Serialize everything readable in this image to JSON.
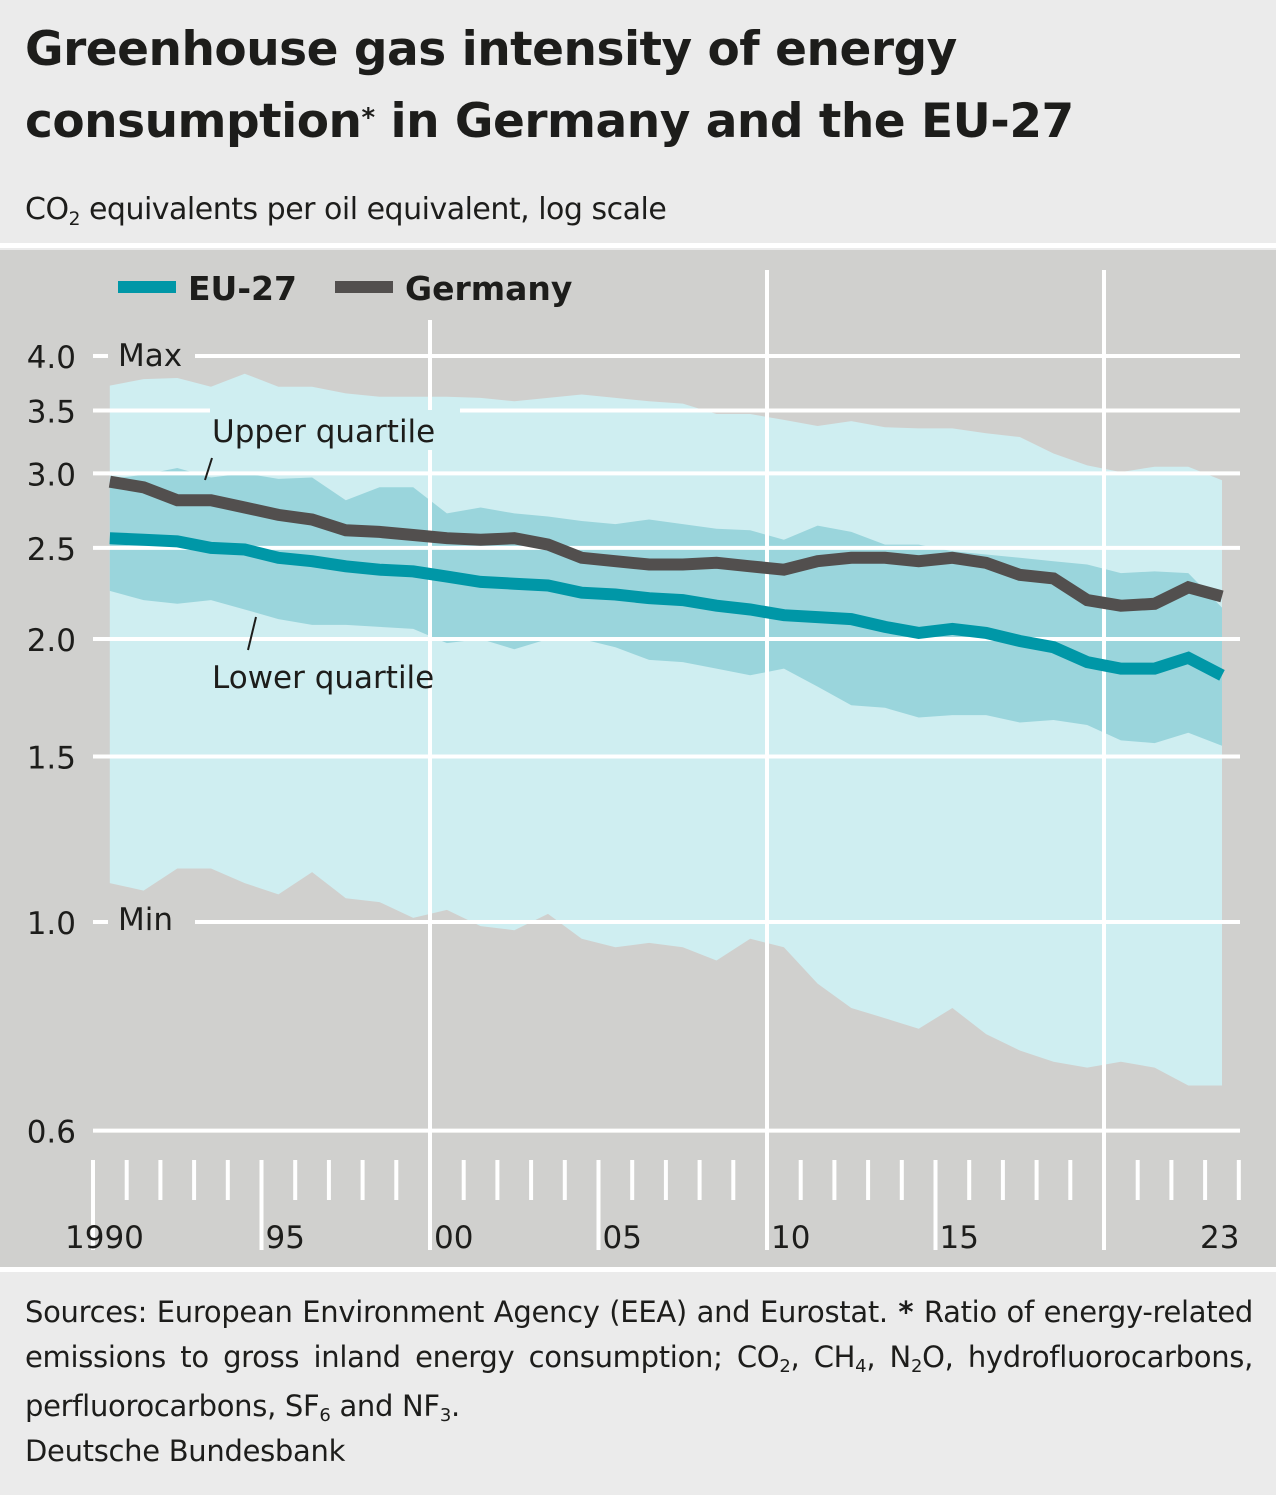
{
  "header": {
    "title_line1": "Greenhouse gas intensity of energy",
    "title_line2_a": "consumption",
    "title_star": "*",
    "title_line2_b": " in Germany and the EU-27",
    "subtitle_co": "CO",
    "subtitle_sub": "2",
    "subtitle_rest": " equivalents per oil equivalent, log scale"
  },
  "footer": {
    "sources": "Sources: European Environment Agency (EEA) and Eurostat.",
    "star": " * ",
    "note_a": "Ratio of energy-related emissions to gross inland energy consumption; CO",
    "note_sub1": "2",
    "note_b": ", CH",
    "note_sub2": "4",
    "note_c": ", N",
    "note_sub3": "2",
    "note_d": "O, hydrofluorocarbons, perfluorocarbons, SF",
    "note_sub4": "6",
    "note_e": " and NF",
    "note_sub5": "3",
    "note_f": ".",
    "credit": "Deutsche Bundesbank"
  },
  "colors": {
    "eu27": "#0097a7",
    "germany": "#524f4e",
    "minmax_band": "#cfeef1",
    "quartile_band": "#9ad5dc",
    "panel_bg": "#d0d0ce",
    "grid": "#ffffff"
  },
  "chart_data": {
    "type": "line",
    "scale": "log",
    "title": "Greenhouse gas intensity of energy consumption* in Germany and the EU-27",
    "ylabel": "CO2 equivalents per oil equivalent, log scale",
    "xlabel": "",
    "ylim": [
      0.6,
      4.0
    ],
    "yticks": [
      0.6,
      1.0,
      1.5,
      2.0,
      2.5,
      3.0,
      3.5,
      4.0
    ],
    "ytick_labels": [
      "0.6",
      "1.0",
      "1.5",
      "2.0",
      "2.5",
      "3.0",
      "3.5",
      "4.0"
    ],
    "xlim": [
      1990,
      2023
    ],
    "xtick_labels": [
      {
        "year": 1990,
        "label": "1990"
      },
      {
        "year": 1995,
        "label": "95"
      },
      {
        "year": 2000,
        "label": "00"
      },
      {
        "year": 2005,
        "label": "05"
      },
      {
        "year": 2010,
        "label": "10"
      },
      {
        "year": 2015,
        "label": "15"
      },
      {
        "year": 2023,
        "label": "23"
      }
    ],
    "legend": {
      "position": "top-left",
      "entries": [
        "EU-27",
        "Germany"
      ]
    },
    "annotations": {
      "max": "Max",
      "min": "Min",
      "upper_quartile": "Upper quartile",
      "lower_quartile": "Lower quartile"
    },
    "x": [
      1990,
      1991,
      1992,
      1993,
      1994,
      1995,
      1996,
      1997,
      1998,
      1999,
      2000,
      2001,
      2002,
      2003,
      2004,
      2005,
      2006,
      2007,
      2008,
      2009,
      2010,
      2011,
      2012,
      2013,
      2014,
      2015,
      2016,
      2017,
      2018,
      2019,
      2020,
      2021,
      2022,
      2023
    ],
    "series": [
      {
        "name": "EU-27",
        "values": [
          2.56,
          2.55,
          2.54,
          2.5,
          2.49,
          2.44,
          2.42,
          2.39,
          2.37,
          2.36,
          2.33,
          2.3,
          2.29,
          2.28,
          2.24,
          2.23,
          2.21,
          2.2,
          2.17,
          2.15,
          2.12,
          2.11,
          2.1,
          2.06,
          2.03,
          2.05,
          2.03,
          1.99,
          1.96,
          1.89,
          1.86,
          1.86,
          1.91,
          1.83
        ]
      },
      {
        "name": "Germany",
        "values": [
          2.94,
          2.9,
          2.81,
          2.81,
          2.76,
          2.71,
          2.68,
          2.61,
          2.6,
          2.58,
          2.56,
          2.55,
          2.56,
          2.52,
          2.44,
          2.42,
          2.4,
          2.4,
          2.41,
          2.39,
          2.37,
          2.42,
          2.44,
          2.44,
          2.42,
          2.44,
          2.41,
          2.34,
          2.32,
          2.2,
          2.17,
          2.18,
          2.27,
          2.22
        ]
      },
      {
        "name": "Max",
        "values": [
          3.72,
          3.78,
          3.79,
          3.71,
          3.83,
          3.71,
          3.71,
          3.65,
          3.62,
          3.62,
          3.62,
          3.61,
          3.58,
          3.61,
          3.64,
          3.61,
          3.58,
          3.56,
          3.47,
          3.47,
          3.42,
          3.37,
          3.41,
          3.36,
          3.35,
          3.35,
          3.31,
          3.28,
          3.15,
          3.06,
          3.01,
          3.05,
          3.05,
          2.95
        ]
      },
      {
        "name": "Upper quartile",
        "values": [
          2.96,
          2.99,
          3.04,
          2.97,
          3.0,
          2.96,
          2.97,
          2.81,
          2.9,
          2.9,
          2.72,
          2.76,
          2.72,
          2.7,
          2.67,
          2.65,
          2.68,
          2.65,
          2.62,
          2.61,
          2.55,
          2.64,
          2.6,
          2.52,
          2.52,
          2.48,
          2.46,
          2.44,
          2.42,
          2.4,
          2.35,
          2.36,
          2.35,
          2.16
        ]
      },
      {
        "name": "Lower quartile",
        "values": [
          2.25,
          2.2,
          2.18,
          2.2,
          2.15,
          2.1,
          2.07,
          2.07,
          2.06,
          2.05,
          1.98,
          2.0,
          1.95,
          2.0,
          2.0,
          1.96,
          1.9,
          1.89,
          1.86,
          1.83,
          1.86,
          1.78,
          1.7,
          1.69,
          1.65,
          1.66,
          1.66,
          1.63,
          1.64,
          1.62,
          1.56,
          1.55,
          1.59,
          1.54
        ]
      },
      {
        "name": "Min",
        "values": [
          1.1,
          1.08,
          1.14,
          1.14,
          1.1,
          1.07,
          1.13,
          1.06,
          1.05,
          1.01,
          1.03,
          0.99,
          0.98,
          1.02,
          0.96,
          0.94,
          0.95,
          0.94,
          0.91,
          0.96,
          0.94,
          0.86,
          0.81,
          0.79,
          0.77,
          0.81,
          0.76,
          0.73,
          0.71,
          0.7,
          0.71,
          0.7,
          0.67,
          0.67
        ]
      }
    ]
  }
}
